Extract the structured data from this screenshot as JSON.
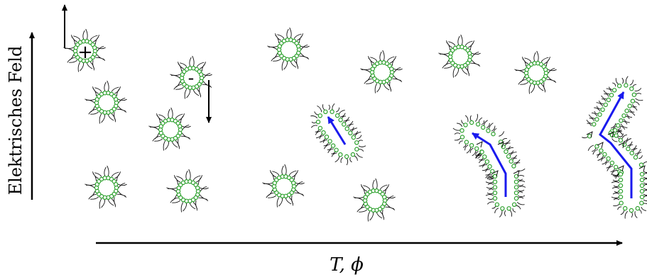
{
  "labels": {
    "y_axis": "Elektrisches Feld",
    "x_axis": "T, ϕ",
    "plus_charge": "+",
    "minus_charge": "-"
  },
  "colors": {
    "bead_fill": "#ffffff",
    "bead_stroke": "#2ca02c",
    "tail_stroke": "#111111",
    "path_arrow": "#1a1aee",
    "axis": "#000000"
  }
}
